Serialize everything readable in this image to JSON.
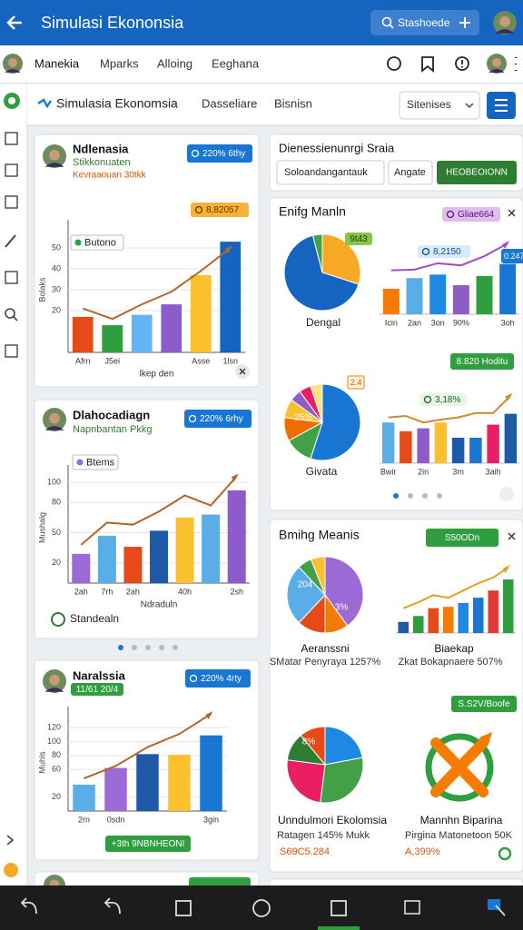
{
  "top_bar": {
    "title": "Simulasi Ekononsia",
    "search": "Stashoede"
  },
  "tabs": [
    "Manekia",
    "Mparks",
    "Alloing",
    "Eeghana"
  ],
  "header": {
    "title": "Simulasia Ekonomsia",
    "links": [
      "Dasseliare",
      "Bisnisn"
    ],
    "select": "Sitenises"
  },
  "cards": [
    {
      "title": "Ndlenasia",
      "subtitle": "Stikkonuaten",
      "note": "Kevraaouan 30tkk",
      "badges": [
        "220% 6thy",
        "8,82057"
      ],
      "chart": {
        "legend": "Butono",
        "y_label": "Bolaks",
        "x_label": "lkep den",
        "ylim": [
          0,
          60
        ],
        "yticks": [
          20,
          30,
          40,
          50
        ],
        "categories": [
          "Afrn",
          "J5ei",
          null,
          null,
          "Asse",
          "1lsn"
        ],
        "values": [
          17,
          13,
          18,
          23,
          37,
          53
        ],
        "colors": [
          "#e64a19",
          "#2e9e3e",
          "#64b5f6",
          "#8e5cc8",
          "#fbc02d",
          "#1565c0"
        ],
        "line": [
          21,
          16,
          23,
          29,
          39,
          50
        ],
        "line_color": "#b5652a"
      }
    },
    {
      "title": "Dlahocadiagn",
      "subtitle": "Napnbantan Pkkg",
      "badges": [
        "220% 6rhy"
      ],
      "footer": "Standealn",
      "chart": {
        "legend": "Btems",
        "y_label": "Mushalg",
        "x_label": "Ndraduln",
        "ylim": [
          0,
          110
        ],
        "yticks": [
          20,
          50,
          80,
          100
        ],
        "categories": [
          "2ah",
          "7rh",
          "2ah",
          null,
          "40h",
          null,
          "2sh"
        ],
        "values": [
          29,
          47,
          36,
          52,
          65,
          68,
          92
        ],
        "colors": [
          "#9c6ad6",
          "#5aaee8",
          "#e64a19",
          "#1e5aa8",
          "#fbc02d",
          "#5aaee8",
          "#8e5cc8"
        ],
        "line": [
          38,
          60,
          58,
          71,
          87,
          77,
          106
        ],
        "line_color": "#b5652a"
      }
    },
    {
      "title": "Naralssia",
      "badges": [
        "11/61 20/4",
        "220% 4rty"
      ],
      "footer": "+3th 9NBNHEONI",
      "chart": {
        "y_label": "Muhls",
        "ylim": [
          0,
          140
        ],
        "yticks": [
          20,
          60,
          80,
          100,
          120
        ],
        "categories": [
          "2rn",
          "0sdn",
          null,
          null,
          "3gin"
        ],
        "values": [
          38,
          62,
          82,
          81,
          109
        ],
        "colors": [
          "#5aaee8",
          "#9c6ad6",
          "#1e5aa8",
          "#fbc02d",
          "#1976d2"
        ],
        "line": [
          47,
          65,
          92,
          111,
          140
        ],
        "line_color": "#b5652a"
      }
    }
  ],
  "panels": [
    {
      "title": "Dienessienunrgi Sraia",
      "inputs": [
        "Soloandangantauk",
        "Angate"
      ],
      "button": "HEOBEOIONN"
    },
    {
      "title": "Enifg Manln",
      "badge": "Gliae664",
      "badge2": "8.820 Hoditu",
      "pie_charts": [
        {
          "caption": "Dengal",
          "labels": [
            "9t43"
          ],
          "values": [
            30,
            66,
            4
          ],
          "colors": [
            "#f9a825",
            "#1565c0",
            "#43a047"
          ]
        },
        {
          "caption": "Givata",
          "labels": [
            "25%",
            "2.4"
          ],
          "values": [
            55,
            12,
            10,
            8,
            5,
            5,
            5
          ],
          "colors": [
            "#1976d2",
            "#43a047",
            "#ef6c00",
            "#fbc02d",
            "#8e5cc8",
            "#e91e63",
            "#ffe082"
          ]
        }
      ],
      "bar_charts": [
        {
          "badges": [
            "8,2150",
            "0.247"
          ],
          "ylim": [
            0,
            100
          ],
          "categories": [
            "Icin",
            "2an",
            "3on",
            "90%",
            null,
            "3oh"
          ],
          "values": [
            36,
            51,
            56,
            41,
            54,
            71
          ],
          "colors": [
            "#f57c00",
            "#5aaee8",
            "#1e88e5",
            "#8e5cc8",
            "#2e9e3e",
            "#1976d2"
          ],
          "line": [
            62,
            63,
            72,
            69,
            82,
            100
          ],
          "line_color": "#9c4fc8"
        },
        {
          "badges": [
            "3,18%"
          ],
          "ylim": [
            0,
            100
          ],
          "categories": [
            "Bwir",
            null,
            "2in",
            null,
            "3m",
            null,
            "3aih",
            null
          ],
          "values": [
            56,
            44,
            48,
            56,
            35,
            35,
            53,
            68
          ],
          "colors": [
            "#5aaee8",
            "#e64a19",
            "#8e5cc8",
            "#fbc02d",
            "#1e5aa8",
            "#1976d2",
            "#e91e63",
            "#1e5aa8"
          ],
          "line": [
            63,
            65,
            56,
            60,
            63,
            69,
            69,
            93
          ],
          "line_color": "#d08a2a"
        }
      ]
    },
    {
      "title": "Bmihg Meanis",
      "badge": "S50ODn",
      "badge2": "S.S2V/Boofe",
      "pie_charts": [
        {
          "caption": "Aeranssni",
          "subcaption": "SMatar Penyraya 1257%",
          "labels": [
            "204",
            "3%"
          ],
          "values": [
            40,
            10,
            12,
            26,
            6,
            6
          ],
          "colors": [
            "#9c6ad6",
            "#f57c00",
            "#e64a19",
            "#5aaee8",
            "#43a047",
            "#fbc02d"
          ]
        },
        {
          "caption": "Unndulmori Ekolomsia",
          "subcaption": "Ratagen 145% Mukk",
          "note": "S69C5.284",
          "labels": [
            "8%"
          ],
          "values": [
            22,
            30,
            25,
            12,
            11
          ],
          "colors": [
            "#1e88e5",
            "#43a047",
            "#e91e63",
            "#2e7d32",
            "#e64a19"
          ]
        }
      ],
      "bar_charts": [
        {
          "caption": "Biaekap",
          "subcaption": "Zkat Bokapnaere 507%",
          "ylim": [
            0,
            100
          ],
          "values": [
            17,
            26,
            38,
            40,
            46,
            54,
            65,
            82
          ],
          "colors": [
            "#1e5aa8",
            "#2e9e3e",
            "#e64a19",
            "#f57c00",
            "#1e88e5",
            "#1976d2",
            "#e53935",
            "#2e9e3e"
          ],
          "line": [
            38,
            47,
            58,
            54,
            65,
            76,
            85,
            100
          ],
          "line_color": "#e0a020"
        }
      ],
      "icon_item": {
        "caption": "Mannhn Biparina",
        "subcaption": "Pirgina Matonetoon 50K",
        "note": "A,399%"
      }
    }
  ]
}
